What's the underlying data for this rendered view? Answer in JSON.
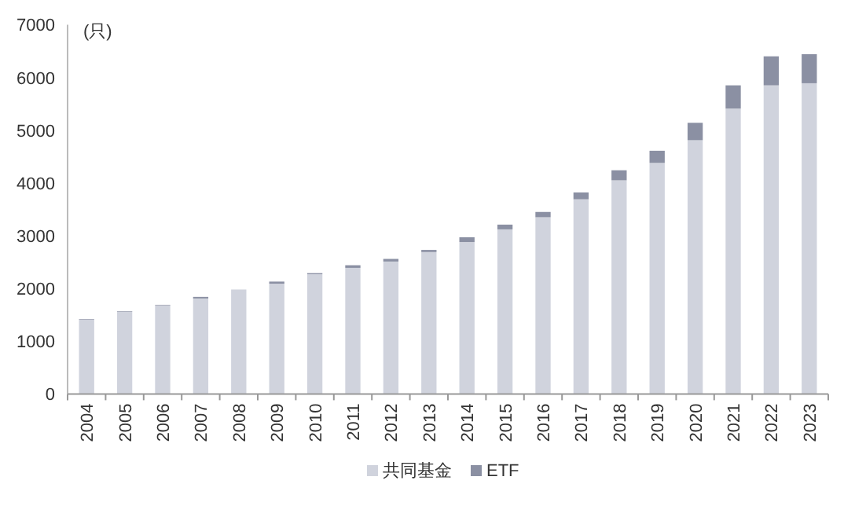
{
  "chart_data": {
    "type": "bar",
    "stacked": true,
    "ylabel": "(只)",
    "categories": [
      "2004",
      "2005",
      "2006",
      "2007",
      "2008",
      "2009",
      "2010",
      "2011",
      "2012",
      "2013",
      "2014",
      "2015",
      "2016",
      "2017",
      "2018",
      "2019",
      "2020",
      "2021",
      "2022",
      "2023"
    ],
    "series": [
      {
        "name": "共同基金",
        "color": "#d0d3dd",
        "values": [
          1410,
          1560,
          1680,
          1810,
          1980,
          2090,
          2270,
          2390,
          2510,
          2690,
          2880,
          3120,
          3350,
          3690,
          4050,
          4380,
          4810,
          5410,
          5850,
          5890
        ]
      },
      {
        "name": "ETF",
        "color": "#8b90a3",
        "values": [
          10,
          10,
          10,
          30,
          null,
          40,
          20,
          50,
          50,
          40,
          90,
          90,
          100,
          130,
          190,
          230,
          330,
          440,
          550,
          550
        ]
      }
    ],
    "ylim": [
      0,
      7000
    ],
    "yticks": [
      0,
      1000,
      2000,
      3000,
      4000,
      5000,
      6000,
      7000
    ],
    "grid": false,
    "legend": "bottom"
  }
}
